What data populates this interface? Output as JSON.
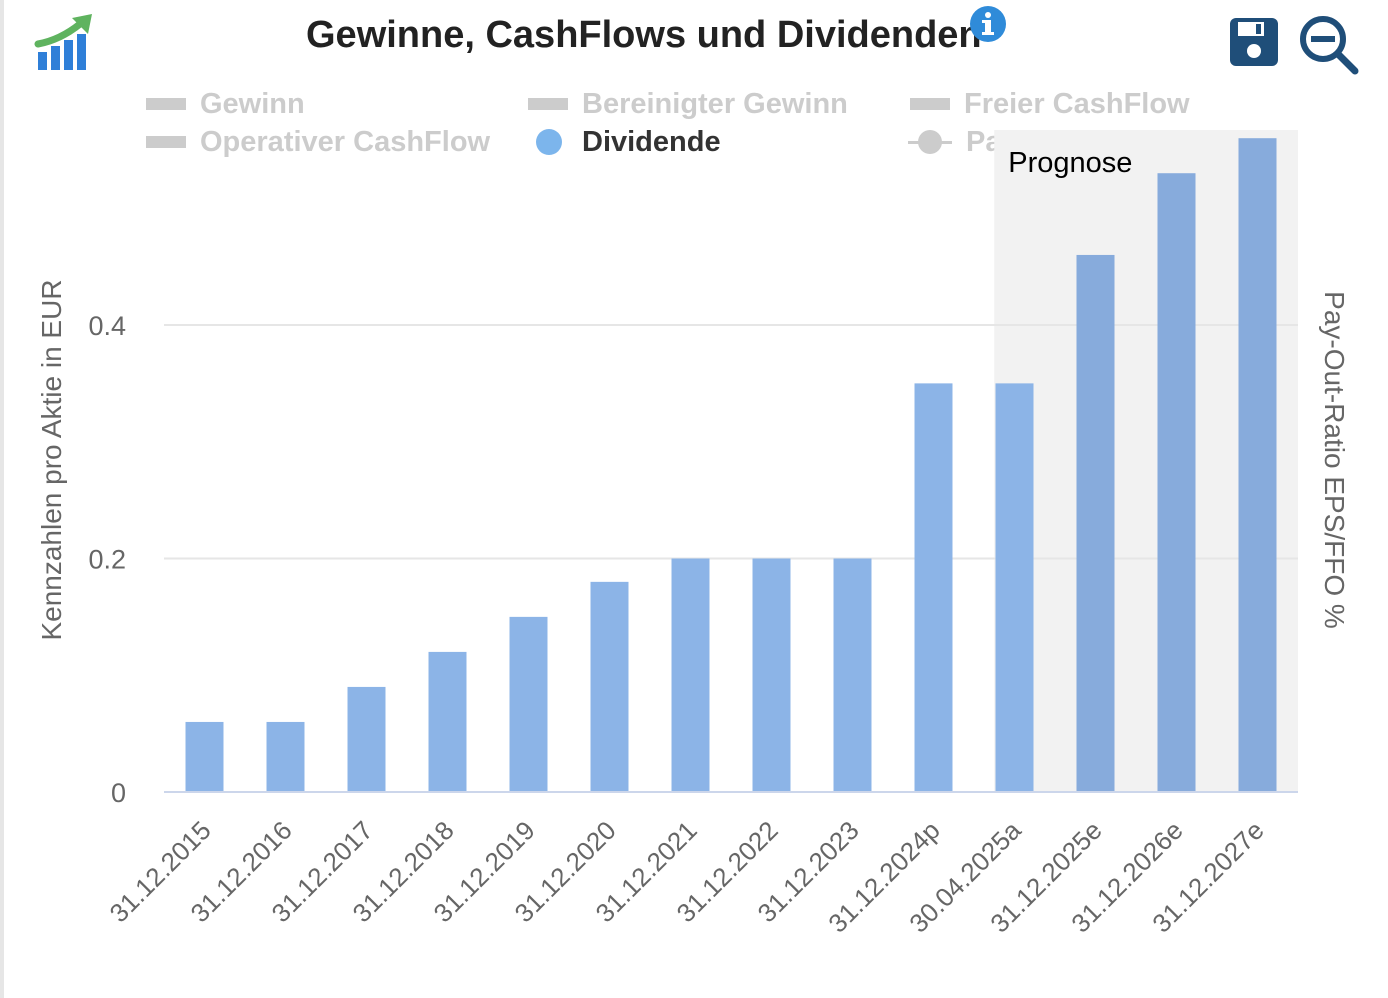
{
  "header": {
    "title": "Gewinne, CashFlows und Dividenden"
  },
  "icons": {
    "logo": "growth-chart-logo",
    "info": "info-icon",
    "save": "save-icon",
    "zoom": "zoom-out-icon"
  },
  "legend": [
    {
      "label": "Gewinn",
      "active": false,
      "symbol": "rect"
    },
    {
      "label": "Bereinigter Gewinn",
      "active": false,
      "symbol": "rect"
    },
    {
      "label": "Freier CashFlow",
      "active": false,
      "symbol": "rect"
    },
    {
      "label": "Operativer CashFlow",
      "active": false,
      "symbol": "rect"
    },
    {
      "label": "Dividende",
      "active": true,
      "symbol": "circle"
    },
    {
      "label": "Pay-Out",
      "active": false,
      "symbol": "line"
    }
  ],
  "colors": {
    "bar": "#8cb4e7",
    "bar_forecast": "#87abdc",
    "forecast_band": "#f2f2f2",
    "grid": "#e6e6e6",
    "axis": "#ccd6eb",
    "legend_inactive": "#cccccc",
    "icon_blue": "#1f4e79",
    "info_blue": "#2f8bd9"
  },
  "chart_data": {
    "type": "bar",
    "title": "Gewinne, CashFlows und Dividenden",
    "ylabel": "Kennzahlen pro Aktie in EUR",
    "y2label": "Pay-Out-Ratio EPS/FFO %",
    "ylim": [
      0,
      0.56
    ],
    "yticks": [
      0,
      0.2,
      0.4
    ],
    "ytick_labels": [
      "0",
      "0.2",
      "0.4"
    ],
    "categories": [
      "31.12.2015",
      "31.12.2016",
      "31.12.2017",
      "31.12.2018",
      "31.12.2019",
      "31.12.2020",
      "31.12.2021",
      "31.12.2022",
      "31.12.2023",
      "31.12.2024p",
      "30.04.2025a",
      "31.12.2025e",
      "31.12.2026e",
      "31.12.2027e"
    ],
    "series": [
      {
        "name": "Dividende",
        "values": [
          0.06,
          0.06,
          0.09,
          0.12,
          0.15,
          0.18,
          0.2,
          0.2,
          0.2,
          0.35,
          0.35,
          0.46,
          0.53,
          0.56
        ]
      }
    ],
    "forecast_band": {
      "label": "Prognose",
      "from_category": "30.04.2025a"
    },
    "grid": true,
    "legend_position": "top"
  }
}
